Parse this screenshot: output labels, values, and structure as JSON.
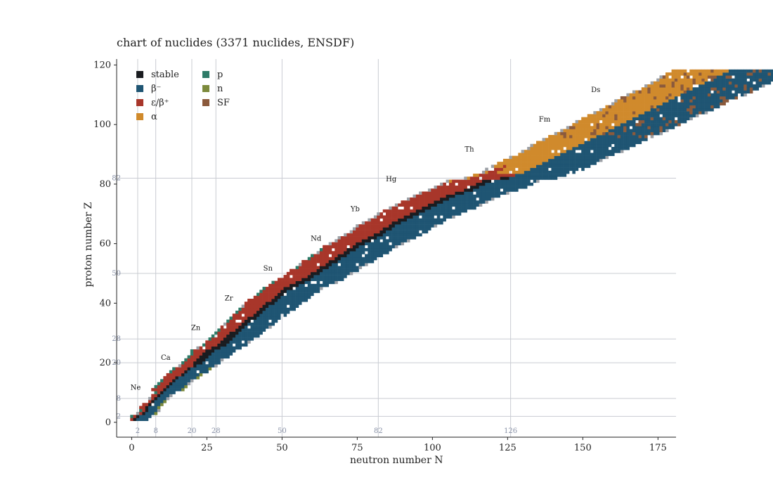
{
  "chart_data": {
    "type": "heatmap",
    "title": "chart of nuclides  (3371 nuclides, ENSDF)",
    "xlabel": "neutron number N",
    "ylabel": "proton number Z",
    "xlim": [
      -5,
      181
    ],
    "ylim": [
      -5,
      122
    ],
    "xticks": [
      0,
      25,
      50,
      75,
      100,
      125,
      150,
      175
    ],
    "yticks": [
      0,
      20,
      40,
      60,
      80,
      100,
      120
    ],
    "grid": false,
    "legend_placement": "top-left",
    "magic_numbers": [
      2,
      8,
      20,
      28,
      50,
      82,
      126
    ],
    "magic_numbers_y": [
      2,
      8,
      20,
      28,
      50,
      82
    ],
    "legend": [
      {
        "label": "stable",
        "color": "#1a1c20"
      },
      {
        "label": "β⁻",
        "color": "#1f5573"
      },
      {
        "label": "ε/β⁺",
        "color": "#a8362a"
      },
      {
        "label": "α",
        "color": "#d08a2c"
      },
      {
        "label": "p",
        "color": "#2e7b68"
      },
      {
        "label": "n",
        "color": "#7c8a3c"
      },
      {
        "label": "SF",
        "color": "#8b5a3c"
      }
    ],
    "unknown_color": "#9ca0a6",
    "element_labels": [
      {
        "name": "Ne",
        "N": 2,
        "Z": 10
      },
      {
        "name": "Ca",
        "N": 12,
        "Z": 20
      },
      {
        "name": "Zn",
        "N": 22,
        "Z": 30
      },
      {
        "name": "Zr",
        "N": 33,
        "Z": 40
      },
      {
        "name": "Sn",
        "N": 46,
        "Z": 50
      },
      {
        "name": "Nd",
        "N": 62,
        "Z": 60
      },
      {
        "name": "Yb",
        "N": 75,
        "Z": 70
      },
      {
        "name": "Hg",
        "N": 87,
        "Z": 80
      },
      {
        "name": "Th",
        "N": 113,
        "Z": 90
      },
      {
        "name": "Fm",
        "N": 138,
        "Z": 100
      },
      {
        "name": "Ds",
        "N": 155,
        "Z": 110
      }
    ],
    "stability_line": [
      [
        1,
        1
      ],
      [
        2,
        2
      ],
      [
        4,
        3
      ],
      [
        6,
        6
      ],
      [
        10,
        10
      ],
      [
        14,
        14
      ],
      [
        18,
        17
      ],
      [
        22,
        20
      ],
      [
        26,
        24
      ],
      [
        30,
        26
      ],
      [
        34,
        30
      ],
      [
        40,
        35
      ],
      [
        46,
        40
      ],
      [
        52,
        45
      ],
      [
        58,
        48
      ],
      [
        64,
        52
      ],
      [
        70,
        56
      ],
      [
        76,
        60
      ],
      [
        82,
        63
      ],
      [
        88,
        67
      ],
      [
        94,
        70
      ],
      [
        100,
        73
      ],
      [
        106,
        76
      ],
      [
        112,
        78
      ],
      [
        118,
        81
      ],
      [
        124,
        82
      ],
      [
        130,
        84
      ],
      [
        136,
        87
      ],
      [
        142,
        90
      ],
      [
        148,
        93
      ],
      [
        154,
        96
      ]
    ]
  }
}
